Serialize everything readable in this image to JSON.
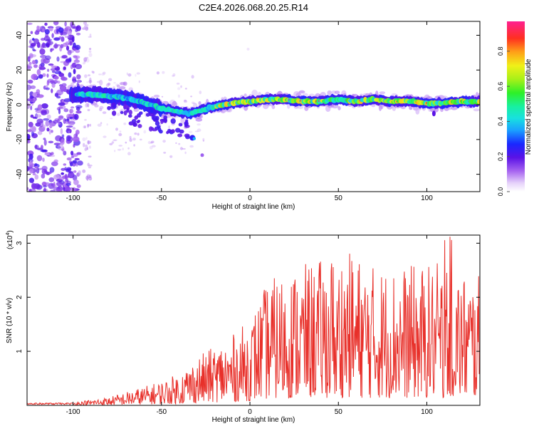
{
  "title": "C2E4.2026.068.20.25.R14",
  "colors": {
    "snr_line": "#e8302a",
    "axis": "#000000",
    "background": "#ffffff"
  },
  "chart_data": [
    {
      "type": "heatmap",
      "name": "spectrogram",
      "xlabel": "Height of straight line (km)",
      "ylabel": "Frequency (Hz)",
      "xlim": [
        -126,
        130
      ],
      "ylim": [
        -50,
        48
      ],
      "xticks": [
        -100,
        -50,
        0,
        50,
        100
      ],
      "yticks": [
        -40,
        -20,
        0,
        20,
        40
      ],
      "colorbar": {
        "label": "Normalized spectral amplitude",
        "range": [
          0,
          0.97
        ],
        "ticks": [
          0.0,
          0.2,
          0.4,
          0.6,
          0.8
        ]
      },
      "ridge": {
        "description": "dominant frequency vs height",
        "x": [
          -100,
          -90,
          -80,
          -70,
          -60,
          -50,
          -45,
          -40,
          -35,
          -30,
          -20,
          -10,
          0,
          10,
          20,
          30,
          40,
          50,
          60,
          70,
          80,
          90,
          100,
          110,
          120,
          130
        ],
        "y": [
          6,
          6,
          5,
          4,
          1,
          -2,
          -3,
          -4,
          -5,
          -4,
          -1,
          1,
          2,
          3,
          3,
          2,
          2,
          3,
          2,
          3,
          2,
          2,
          1,
          1,
          2,
          2
        ]
      }
    },
    {
      "type": "line",
      "name": "snr",
      "xlabel": "Height of straight line (km)",
      "ylabel": "SNR (10 * v/v)",
      "scale_label": "(x10",
      "scale_exp": "4",
      "scale_close": ")",
      "xlim": [
        -126,
        130
      ],
      "ylim": [
        0,
        3.15
      ],
      "xticks": [
        -100,
        -50,
        0,
        50,
        100
      ],
      "yticks": [
        1,
        2,
        3
      ],
      "envelope": {
        "x": [
          -126,
          -100,
          -80,
          -70,
          -60,
          -50,
          -40,
          -30,
          -20,
          -10,
          0,
          10,
          20,
          30,
          40,
          50,
          60,
          70,
          80,
          90,
          100,
          110,
          120,
          130
        ],
        "y": [
          0.03,
          0.06,
          0.15,
          0.25,
          0.35,
          0.45,
          0.6,
          0.9,
          1.1,
          1.3,
          1.6,
          2.3,
          2.5,
          2.6,
          2.7,
          2.9,
          2.8,
          2.6,
          2.6,
          2.6,
          2.6,
          2.7,
          2.5,
          2.4
        ]
      }
    }
  ]
}
